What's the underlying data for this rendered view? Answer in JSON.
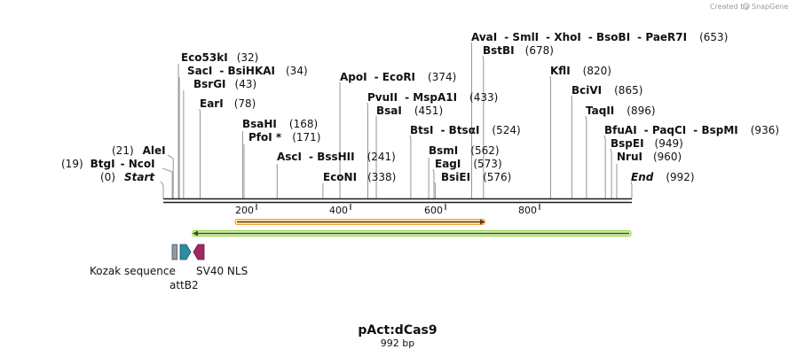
{
  "watermark": {
    "created_by": "Created by",
    "brand": "SnapGene"
  },
  "plasmid": {
    "name": "pAct:dCas9",
    "length_label": "992 bp"
  },
  "sequence": {
    "start": 0,
    "end": 992
  },
  "ruler": {
    "ticks": [
      "200",
      "400",
      "600",
      "800"
    ]
  },
  "sites": [
    {
      "enzymes": [
        "Start"
      ],
      "pos": "(0)",
      "italic": true
    },
    {
      "enzymes": [
        "BtgI",
        "NcoI"
      ],
      "pos": "(19)"
    },
    {
      "enzymes": [
        "AleI"
      ],
      "pos": "(21)"
    },
    {
      "enzymes": [
        "Eco53kI"
      ],
      "pos": "(32)"
    },
    {
      "enzymes": [
        "SacI",
        "BsiHKAI"
      ],
      "pos": "(34)"
    },
    {
      "enzymes": [
        "BsrGI"
      ],
      "pos": "(43)"
    },
    {
      "enzymes": [
        "EarI"
      ],
      "pos": "(78)"
    },
    {
      "enzymes": [
        "BsaHI"
      ],
      "pos": "(168)"
    },
    {
      "enzymes": [
        "PfoI *"
      ],
      "pos": "(171)"
    },
    {
      "enzymes": [
        "AscI",
        "BssHII"
      ],
      "pos": "(241)"
    },
    {
      "enzymes": [
        "EcoNI"
      ],
      "pos": "(338)"
    },
    {
      "enzymes": [
        "ApoI",
        "EcoRI"
      ],
      "pos": "(374)"
    },
    {
      "enzymes": [
        "PvuII",
        "MspA1I"
      ],
      "pos": "(433)"
    },
    {
      "enzymes": [
        "BsaI"
      ],
      "pos": "(451)"
    },
    {
      "enzymes": [
        "BtsI",
        "BtsαI"
      ],
      "pos": "(524)"
    },
    {
      "enzymes": [
        "BsmI"
      ],
      "pos": "(562)"
    },
    {
      "enzymes": [
        "EagI"
      ],
      "pos": "(573)"
    },
    {
      "enzymes": [
        "BsiEI"
      ],
      "pos": "(576)"
    },
    {
      "enzymes": [
        "AvaI",
        "SmlI",
        "XhoI",
        "BsoBI",
        "PaeR7I"
      ],
      "pos": "(653)"
    },
    {
      "enzymes": [
        "BstBI"
      ],
      "pos": "(678)"
    },
    {
      "enzymes": [
        "KflI"
      ],
      "pos": "(820)"
    },
    {
      "enzymes": [
        "BciVI"
      ],
      "pos": "(865)"
    },
    {
      "enzymes": [
        "TaqII"
      ],
      "pos": "(896)"
    },
    {
      "enzymes": [
        "BfuAI",
        "PaqCI",
        "BspMI"
      ],
      "pos": "(936)"
    },
    {
      "enzymes": [
        "BspEI"
      ],
      "pos": "(949)"
    },
    {
      "enzymes": [
        "NruI"
      ],
      "pos": "(960)"
    },
    {
      "enzymes": [
        "End"
      ],
      "pos": "(992)",
      "italic": true
    }
  ],
  "features": [
    {
      "name": "Kozak sequence",
      "color": "#8e9aa6"
    },
    {
      "name": "attB2",
      "color": "#2f8aa3"
    },
    {
      "name": "SV40 NLS",
      "color": "#a02a63"
    }
  ],
  "orfs": [
    {
      "color": "#f0a030"
    },
    {
      "color": "#8ed13a"
    }
  ]
}
